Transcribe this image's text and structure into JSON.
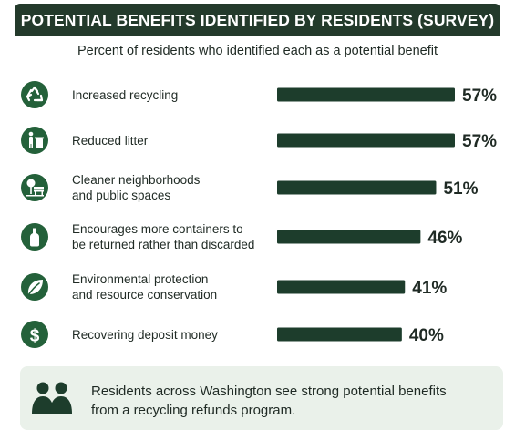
{
  "header": {
    "title": "POTENTIAL BENEFITS IDENTIFIED BY RESIDENTS (SURVEY)"
  },
  "chart_data": {
    "type": "bar",
    "orientation": "horizontal",
    "title": "POTENTIAL BENEFITS IDENTIFIED BY RESIDENTS (SURVEY)",
    "subtitle": "Percent of residents who identified each as a potential benefit",
    "categories": [
      [
        "Increased recycling"
      ],
      [
        "Reduced litter"
      ],
      [
        "Cleaner neighborhoods",
        "and public spaces"
      ],
      [
        "Encourages more containers to",
        "be returned rather than discarded"
      ],
      [
        "Environmental protection",
        "and resource conservation"
      ],
      [
        "Recovering deposit money"
      ]
    ],
    "values": [
      57,
      57,
      51,
      46,
      41,
      40
    ],
    "value_labels": [
      "57%",
      "57%",
      "51%",
      "46%",
      "41%",
      "40%"
    ],
    "icons": [
      "recycle-icon",
      "person-trash-icon",
      "park-bench-icon",
      "bottle-icon",
      "leaf-icon",
      "dollar-icon"
    ],
    "bar_color": "#1d3d2c",
    "icon_color": "#24613a"
  },
  "summary": {
    "icon": "people-icon",
    "text": "Residents across Washington see strong potential benefits from a recycling refunds program."
  }
}
